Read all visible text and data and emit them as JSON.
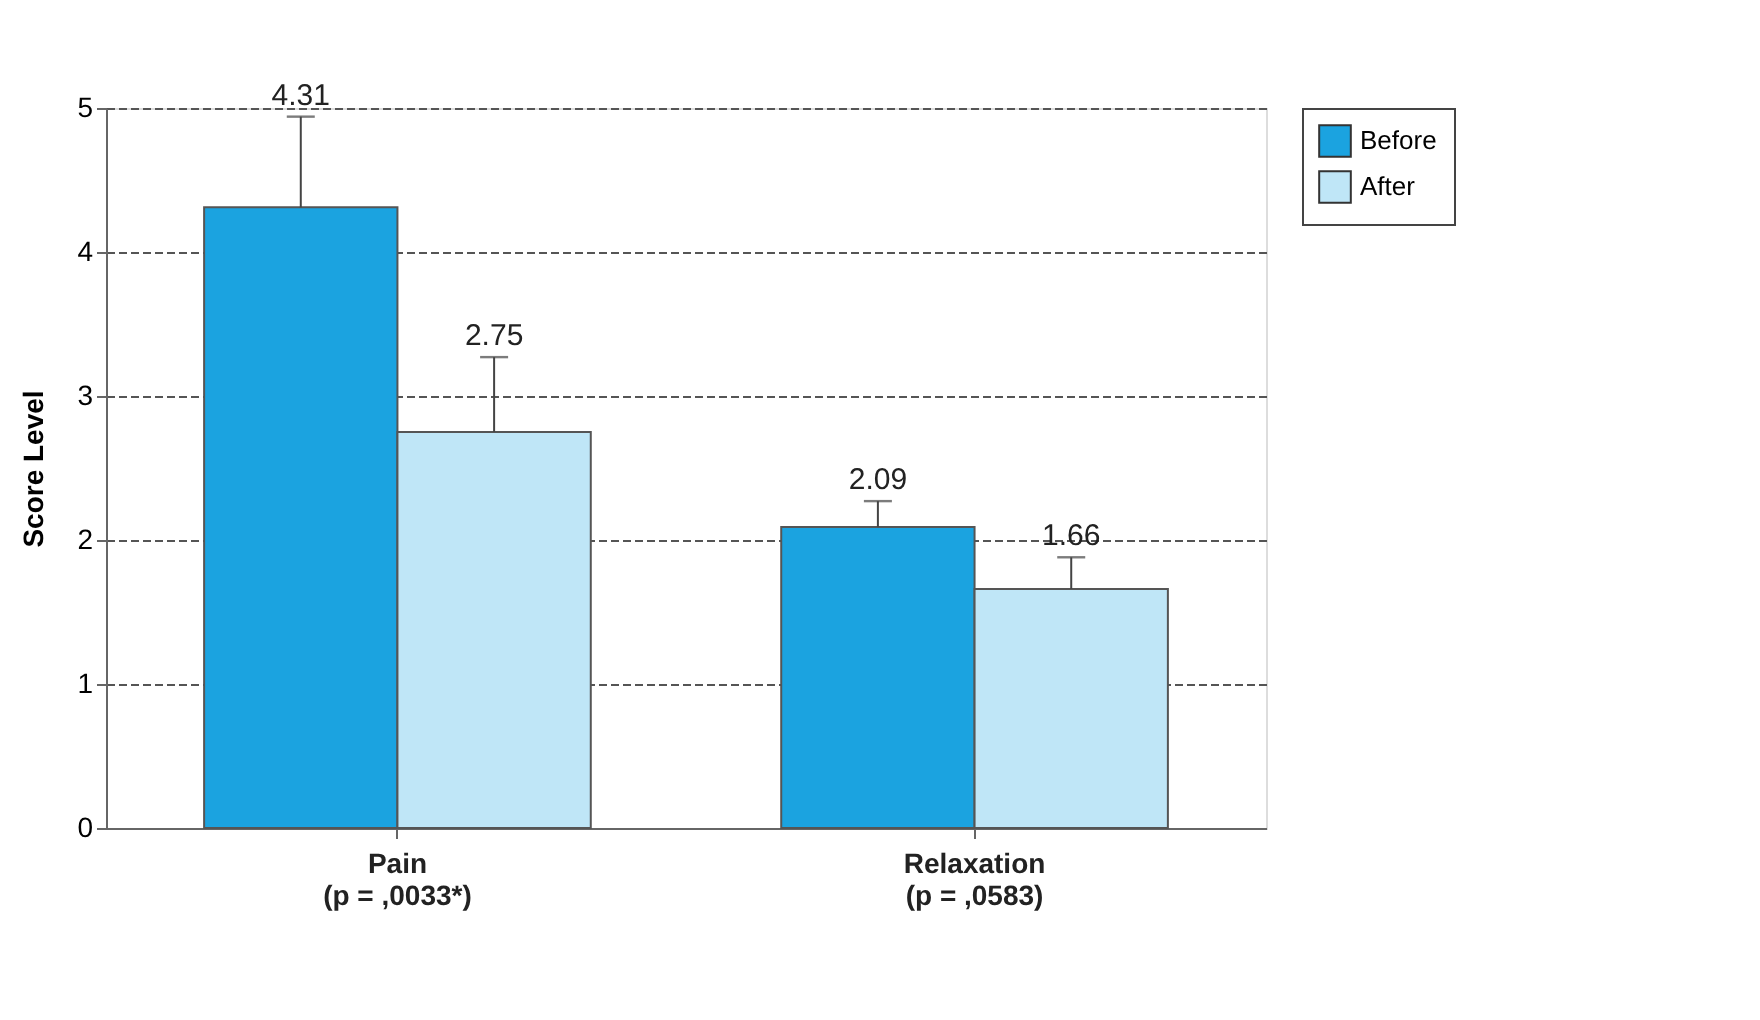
{
  "chart_data": {
    "type": "bar",
    "ylabel": "Score Level",
    "categories": [
      "Pain\n(p = ,0033*)",
      "Relaxation\n(p = ,0583)"
    ],
    "series": [
      {
        "name": "Before",
        "color": "#1ba3e0",
        "values": [
          4.31,
          2.09
        ],
        "errors": [
          [
            4.31,
            4.94
          ],
          [
            2.09,
            2.27
          ]
        ]
      },
      {
        "name": "After",
        "color": "#bfe6f7",
        "values": [
          2.75,
          1.66
        ],
        "errors": [
          [
            2.75,
            3.27
          ],
          [
            1.66,
            1.88
          ]
        ]
      }
    ],
    "ylim": [
      0,
      5
    ],
    "yticks": [
      0,
      1,
      2,
      3,
      4,
      5
    ],
    "grid": "y",
    "legend": "right",
    "data_labels": true
  }
}
